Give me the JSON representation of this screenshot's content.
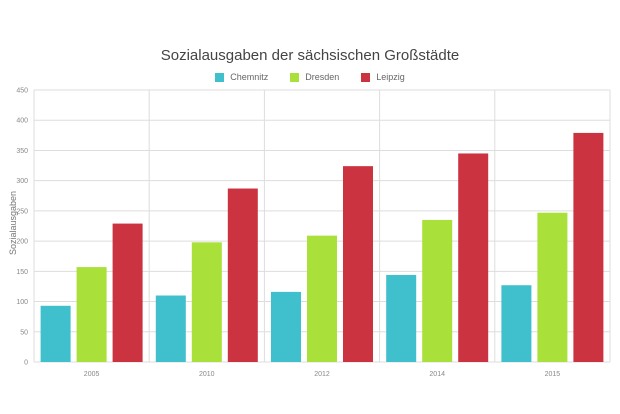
{
  "chart_data": {
    "type": "bar",
    "title": "Sozialausgaben der sächsischen Großstädte",
    "xlabel": "",
    "ylabel": "Sozialausgaben",
    "ylim": [
      0,
      450
    ],
    "yticks": [
      0,
      50,
      100,
      150,
      200,
      250,
      300,
      350,
      400,
      450
    ],
    "grid": true,
    "legend_position": "top",
    "categories": [
      "2005",
      "2010",
      "2012",
      "2014",
      "2015"
    ],
    "series": [
      {
        "name": "Chemnitz",
        "color": "#3fc0cc",
        "values": [
          93,
          110,
          116,
          144,
          127
        ]
      },
      {
        "name": "Dresden",
        "color": "#a9e03a",
        "values": [
          157,
          198,
          209,
          235,
          247
        ]
      },
      {
        "name": "Leipzig",
        "color": "#cc3340",
        "values": [
          229,
          287,
          324,
          345,
          379
        ]
      }
    ]
  }
}
